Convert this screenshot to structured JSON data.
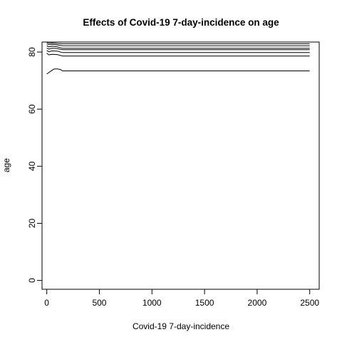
{
  "chart_data": {
    "type": "line",
    "title": "Effects of Covid-19 7-day-incidence on age",
    "xlabel": "Covid-19 7-day-incidence",
    "ylabel": "age",
    "xlim": [
      -45,
      2590
    ],
    "ylim": [
      -3.1,
      83.5
    ],
    "x_ticks": [
      0,
      500,
      1000,
      1500,
      2000,
      2500
    ],
    "y_ticks": [
      0,
      20,
      40,
      60,
      80
    ],
    "grid": false,
    "legend": "none",
    "line_color": "#000000",
    "series": [
      {
        "x": [
          0,
          50,
          70,
          100,
          130,
          150,
          300,
          800,
          1500,
          2500
        ],
        "y": [
          72.3,
          73.6,
          74.1,
          74.1,
          73.9,
          73.4,
          73.4,
          73.4,
          73.4,
          73.4
        ]
      },
      {
        "x": [
          0,
          20,
          50,
          100,
          150,
          300,
          800,
          1500,
          2500
        ],
        "y": [
          79.6,
          79.0,
          79.2,
          79.1,
          78.6,
          78.6,
          78.6,
          78.6,
          78.6
        ]
      },
      {
        "x": [
          0,
          20,
          50,
          100,
          150,
          300,
          800,
          1500,
          2500
        ],
        "y": [
          80.5,
          80.1,
          80.4,
          80.3,
          79.8,
          79.8,
          79.8,
          79.8,
          79.8
        ]
      },
      {
        "x": [
          0,
          20,
          50,
          100,
          150,
          300,
          800,
          1500,
          2500
        ],
        "y": [
          81.4,
          81.0,
          81.3,
          81.2,
          80.8,
          80.8,
          80.8,
          80.8,
          80.8
        ]
      },
      {
        "x": [
          0,
          20,
          50,
          100,
          150,
          300,
          800,
          1500,
          2500
        ],
        "y": [
          82.2,
          81.8,
          82.0,
          81.8,
          81.3,
          81.3,
          81.3,
          81.3,
          81.3
        ]
      },
      {
        "x": [
          0,
          20,
          50,
          100,
          150,
          300,
          800,
          1500,
          2500
        ],
        "y": [
          82.8,
          82.6,
          82.7,
          82.5,
          82.2,
          82.2,
          82.2,
          82.2,
          82.2
        ]
      },
      {
        "x": [
          0,
          20,
          50,
          100,
          150,
          300,
          800,
          1500,
          2500
        ],
        "y": [
          83.3,
          83.1,
          83.2,
          83.0,
          82.9,
          82.9,
          82.9,
          82.9,
          82.9
        ]
      }
    ]
  }
}
